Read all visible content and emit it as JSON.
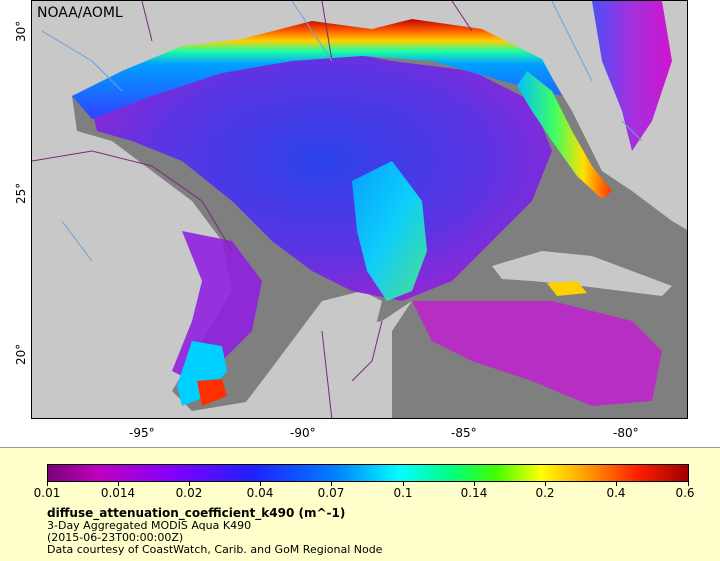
{
  "map": {
    "credit": "NOAA/AOML",
    "lat_ticks": [
      "30°",
      "25°",
      "20°"
    ],
    "lon_ticks": [
      "-95°",
      "-90°",
      "-85°",
      "-80°"
    ],
    "colors": {
      "land": "#c8c8c8",
      "nodata": "#7f7f7f",
      "border": "#7a2a7a",
      "river": "#6ea0d8"
    }
  },
  "legend": {
    "ticks": [
      "0.01",
      "0.014",
      "0.02",
      "0.04",
      "0.07",
      "0.1",
      "0.14",
      "0.2",
      "0.4",
      "0.6"
    ],
    "variable": "diffuse_attenuation_coefficient_k490 (m^-1)",
    "product": "3-Day Aggregated MODIS Aqua K490",
    "time": "(2015-06-23T00:00:00Z)",
    "courtesy": "Data courtesy of CoastWatch, Carib. and GoM Regional Node"
  }
}
